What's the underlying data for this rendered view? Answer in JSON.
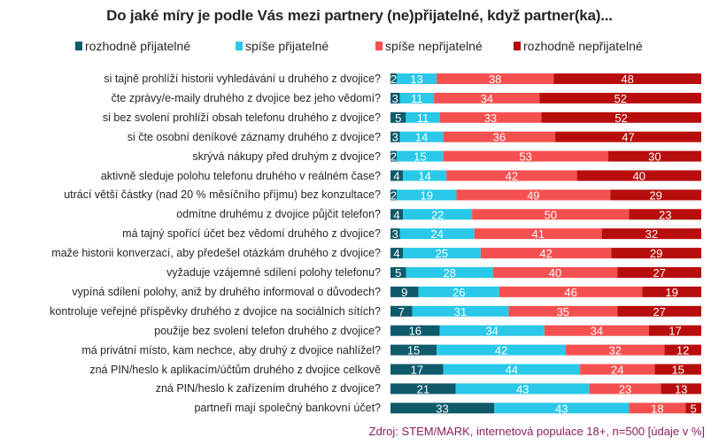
{
  "chart_data": {
    "type": "bar",
    "orientation": "horizontal",
    "stacked": true,
    "title": "Do jaké míry je podle Vás mezi partnery (ne)přijatelné, když partner(ka)...",
    "xlabel": "",
    "ylabel": "",
    "xlim": [
      0,
      100
    ],
    "grid": false,
    "legend_position": "top",
    "categories": [
      "si tajně prohlíží historii vyhledávání u druhého z dvojice?",
      "čte zprávy/e-maily druhého z dvojice bez jeho vědomí?",
      "si bez svolení prohlíží obsah telefonu druhého z dvojice?",
      "si čte osobní deníkové záznamy druhého z dvojice?",
      "skrývá nákupy před druhým z dvojice?",
      "aktivně sleduje polohu telefonu druhého v reálném čase?",
      "utrácí větší částky (nad 20 % měsíčního příjmu) bez konzultace?",
      "odmítne druhému z dvojice půjčit telefon?",
      "má tajný spořící účet bez vědomí druhého z dvojice?",
      "maže historii konverzací, aby předešel otázkám druhého z dvojice?",
      "vyžaduje vzájemné sdílení polohy telefonu?",
      "vypíná sdílení polohy, aniž by druhého informoval o důvodech?",
      "kontroluje veřejné příspěvky druhého z dvojice na sociálních sítích?",
      "použije bez svolení telefon druhého z dvojice?",
      "má privátní místo, kam nechce, aby druhý z dvojice nahlížel?",
      "zná PIN/heslo k aplikacím/účtům druhého z dvojice celkově",
      "zná PIN/heslo k zařízením druhého z dvojice?",
      "partneři mají společný bankovní účet?"
    ],
    "series": [
      {
        "name": "rozhodně přijatelné",
        "color": "#0f5a6b",
        "values": [
          2,
          3,
          5,
          3,
          2,
          4,
          2,
          4,
          3,
          4,
          5,
          9,
          7,
          16,
          15,
          17,
          21,
          33
        ]
      },
      {
        "name": "spíše přijatelné",
        "color": "#29c8e8",
        "values": [
          13,
          11,
          11,
          14,
          15,
          14,
          19,
          22,
          24,
          25,
          28,
          26,
          31,
          34,
          42,
          44,
          43,
          43
        ]
      },
      {
        "name": "spíše nepřijatelné",
        "color": "#f55050",
        "values": [
          38,
          34,
          33,
          36,
          53,
          42,
          49,
          50,
          41,
          42,
          40,
          46,
          35,
          34,
          32,
          24,
          23,
          18
        ]
      },
      {
        "name": "rozhodně nepřijatelné",
        "color": "#b80d0d",
        "values": [
          48,
          52,
          52,
          47,
          30,
          40,
          29,
          23,
          32,
          29,
          27,
          19,
          27,
          17,
          12,
          15,
          13,
          5
        ]
      }
    ]
  },
  "source": "Zdroj: STEM/MARK, internetová populace 18+, n=500 [údaje v %]"
}
